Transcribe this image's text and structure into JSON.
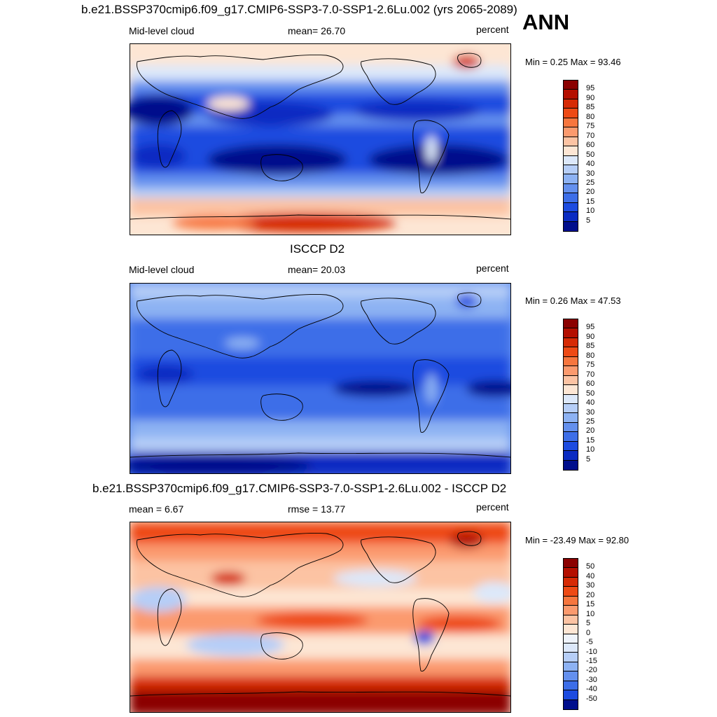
{
  "figure": {
    "ann_label": "ANN"
  },
  "panels": [
    {
      "title": "b.e21.BSSP370cmip6.f09_g17.CMIP6-SSP3-7.0-SSP1-2.6Lu.002 (yrs 2065-2089)",
      "left_label": "Mid-level cloud",
      "center_label": "mean=  26.70",
      "units": "percent",
      "minmax": "Min =   0.25 Max =  93.46",
      "colorbar_levels": [
        "95",
        "90",
        "85",
        "80",
        "75",
        "70",
        "60",
        "50",
        "40",
        "30",
        "25",
        "20",
        "15",
        "10",
        "5"
      ],
      "colorbar_colors": [
        "#8b0000",
        "#b40f00",
        "#d62a05",
        "#ee4a15",
        "#f7763e",
        "#fb9a6e",
        "#fcc3a3",
        "#fde6d4",
        "#dce8fa",
        "#b6cef7",
        "#8db2f3",
        "#6490ee",
        "#3d6ee8",
        "#1c4be0",
        "#0a2bc2",
        "#000e8c"
      ]
    },
    {
      "title": "ISCCP D2",
      "left_label": "Mid-level cloud",
      "center_label": "mean=  20.03",
      "units": "percent",
      "minmax": "Min =   0.26 Max =  47.53",
      "colorbar_levels": [
        "95",
        "90",
        "85",
        "80",
        "75",
        "70",
        "60",
        "50",
        "40",
        "30",
        "25",
        "20",
        "15",
        "10",
        "5"
      ],
      "colorbar_colors": [
        "#8b0000",
        "#b40f00",
        "#d62a05",
        "#ee4a15",
        "#f7763e",
        "#fb9a6e",
        "#fcc3a3",
        "#fde6d4",
        "#dce8fa",
        "#b6cef7",
        "#8db2f3",
        "#6490ee",
        "#3d6ee8",
        "#1c4be0",
        "#0a2bc2",
        "#000e8c"
      ]
    },
    {
      "title": "b.e21.BSSP370cmip6.f09_g17.CMIP6-SSP3-7.0-SSP1-2.6Lu.002 - ISCCP D2",
      "left_label": "mean =   6.67",
      "center_label": "rmse =  13.77",
      "units": "percent",
      "minmax": "Min = -23.49 Max =  92.80",
      "colorbar_levels": [
        "50",
        "40",
        "30",
        "20",
        "15",
        "10",
        "5",
        "0",
        "-5",
        "-10",
        "-15",
        "-20",
        "-30",
        "-40",
        "-50"
      ],
      "colorbar_colors": [
        "#8b0000",
        "#b40f00",
        "#d62a05",
        "#ee4a15",
        "#f7763e",
        "#fb9a6e",
        "#fcc3a3",
        "#fde6d4",
        "#eef3fb",
        "#dce8fa",
        "#b6cef7",
        "#8db2f3",
        "#6490ee",
        "#3d6ee8",
        "#1c4be0",
        "#000e8c"
      ]
    }
  ]
}
